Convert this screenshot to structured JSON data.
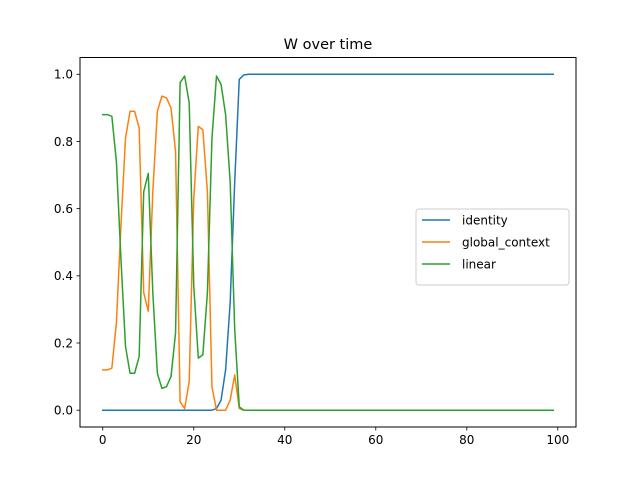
{
  "chart_data": {
    "type": "line",
    "title": "W over time",
    "xlabel": "",
    "ylabel": "",
    "xlim": [
      -5,
      104
    ],
    "ylim": [
      -0.05,
      1.05
    ],
    "xticks": [
      0,
      20,
      40,
      60,
      80,
      100
    ],
    "yticks": [
      0.0,
      0.2,
      0.4,
      0.6,
      0.8,
      1.0
    ],
    "grid": false,
    "legend_position": "center-right",
    "series": [
      {
        "name": "identity",
        "color": "#1f77b4",
        "points": [
          [
            0,
            0
          ],
          [
            1,
            0
          ],
          [
            2,
            0
          ],
          [
            3,
            0
          ],
          [
            4,
            0
          ],
          [
            5,
            0
          ],
          [
            6,
            0
          ],
          [
            7,
            0
          ],
          [
            8,
            0
          ],
          [
            9,
            0
          ],
          [
            10,
            0
          ],
          [
            11,
            0
          ],
          [
            12,
            0
          ],
          [
            13,
            0
          ],
          [
            14,
            0
          ],
          [
            15,
            0
          ],
          [
            16,
            0
          ],
          [
            17,
            0
          ],
          [
            18,
            0
          ],
          [
            19,
            0
          ],
          [
            20,
            0
          ],
          [
            21,
            0
          ],
          [
            22,
            0
          ],
          [
            23,
            0
          ],
          [
            24,
            0
          ],
          [
            25,
            0.005
          ],
          [
            26,
            0.03
          ],
          [
            27,
            0.12
          ],
          [
            28,
            0.32
          ],
          [
            29,
            0.68
          ],
          [
            30,
            0.985
          ],
          [
            31,
            0.998
          ],
          [
            32,
            1.0
          ],
          [
            40,
            1.0
          ],
          [
            60,
            1.0
          ],
          [
            80,
            1.0
          ],
          [
            99,
            1.0
          ]
        ]
      },
      {
        "name": "global_context",
        "color": "#ff7f0e",
        "points": [
          [
            0,
            0.12
          ],
          [
            1,
            0.12
          ],
          [
            2,
            0.125
          ],
          [
            3,
            0.26
          ],
          [
            4,
            0.55
          ],
          [
            5,
            0.81
          ],
          [
            6,
            0.89
          ],
          [
            7,
            0.89
          ],
          [
            8,
            0.84
          ],
          [
            9,
            0.35
          ],
          [
            10,
            0.295
          ],
          [
            11,
            0.65
          ],
          [
            12,
            0.89
          ],
          [
            13,
            0.935
          ],
          [
            14,
            0.93
          ],
          [
            15,
            0.9
          ],
          [
            16,
            0.77
          ],
          [
            17,
            0.025
          ],
          [
            18,
            0.005
          ],
          [
            19,
            0.085
          ],
          [
            20,
            0.63
          ],
          [
            21,
            0.845
          ],
          [
            22,
            0.835
          ],
          [
            23,
            0.65
          ],
          [
            24,
            0.07
          ],
          [
            25,
            0.0
          ],
          [
            26,
            0.0
          ],
          [
            27,
            0.0
          ],
          [
            28,
            0.03
          ],
          [
            29,
            0.105
          ],
          [
            30,
            0.005
          ],
          [
            31,
            0.0
          ],
          [
            40,
            0.0
          ],
          [
            60,
            0.0
          ],
          [
            80,
            0.0
          ],
          [
            99,
            0.0
          ]
        ]
      },
      {
        "name": "linear",
        "color": "#2ca02c",
        "points": [
          [
            0,
            0.88
          ],
          [
            1,
            0.88
          ],
          [
            2,
            0.875
          ],
          [
            3,
            0.74
          ],
          [
            4,
            0.45
          ],
          [
            5,
            0.19
          ],
          [
            6,
            0.11
          ],
          [
            7,
            0.11
          ],
          [
            8,
            0.16
          ],
          [
            9,
            0.65
          ],
          [
            10,
            0.705
          ],
          [
            11,
            0.35
          ],
          [
            12,
            0.11
          ],
          [
            13,
            0.065
          ],
          [
            14,
            0.07
          ],
          [
            15,
            0.1
          ],
          [
            16,
            0.23
          ],
          [
            17,
            0.975
          ],
          [
            18,
            0.995
          ],
          [
            19,
            0.915
          ],
          [
            20,
            0.37
          ],
          [
            21,
            0.155
          ],
          [
            22,
            0.165
          ],
          [
            23,
            0.35
          ],
          [
            24,
            0.81
          ],
          [
            25,
            0.995
          ],
          [
            26,
            0.97
          ],
          [
            27,
            0.88
          ],
          [
            28,
            0.68
          ],
          [
            29,
            0.24
          ],
          [
            30,
            0.01
          ],
          [
            31,
            0.0
          ],
          [
            40,
            0.0
          ],
          [
            60,
            0.0
          ],
          [
            80,
            0.0
          ],
          [
            99,
            0.0
          ]
        ]
      }
    ]
  }
}
